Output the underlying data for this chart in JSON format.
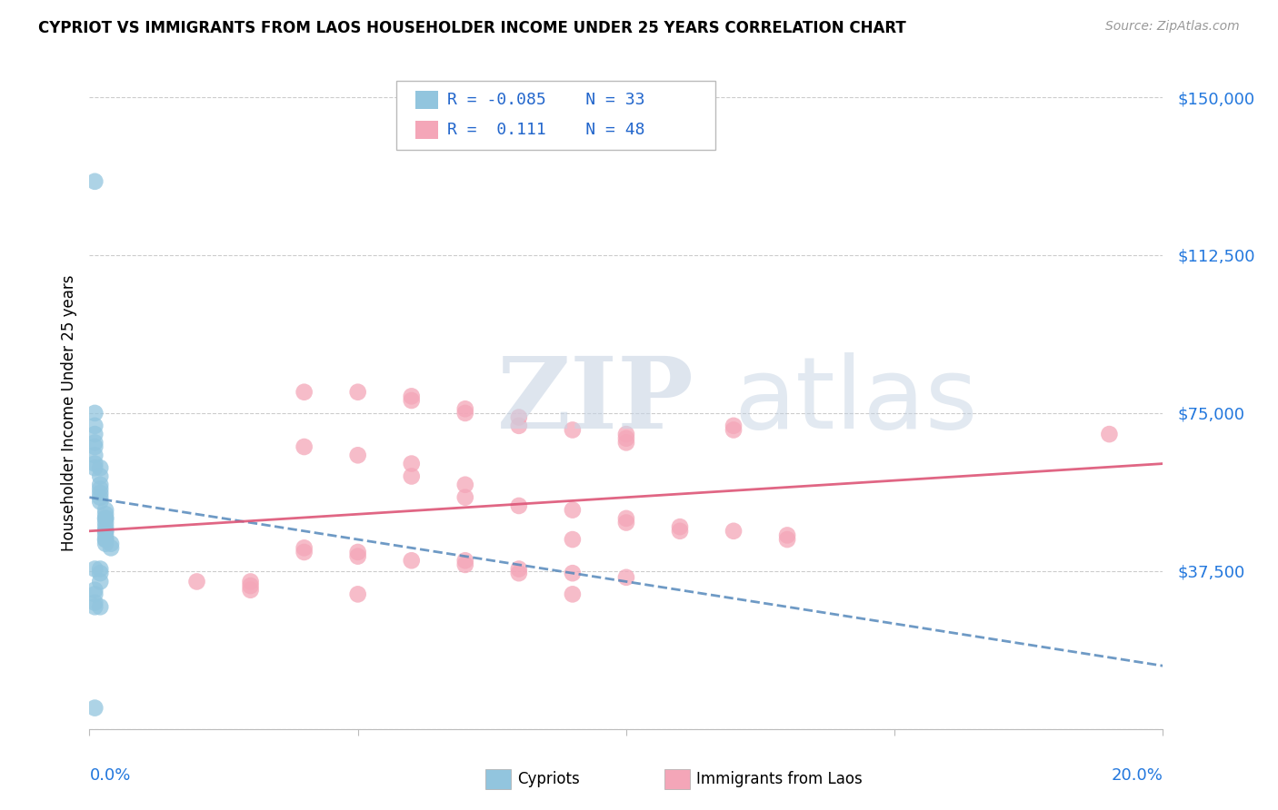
{
  "title": "CYPRIOT VS IMMIGRANTS FROM LAOS HOUSEHOLDER INCOME UNDER 25 YEARS CORRELATION CHART",
  "source": "Source: ZipAtlas.com",
  "ylabel": "Householder Income Under 25 years",
  "xmin": 0.0,
  "xmax": 0.2,
  "ymin": 0,
  "ymax": 150000,
  "yticks": [
    0,
    37500,
    75000,
    112500,
    150000
  ],
  "ytick_labels": [
    "",
    "$37,500",
    "$75,000",
    "$112,500",
    "$150,000"
  ],
  "cypriot_color": "#92c5de",
  "laos_color": "#f4a6b8",
  "cypriot_line_color": "#5588bb",
  "laos_line_color": "#dd5577",
  "cypriot_points": [
    [
      0.001,
      130000
    ],
    [
      0.001,
      75000
    ],
    [
      0.001,
      72000
    ],
    [
      0.001,
      70000
    ],
    [
      0.001,
      68000
    ],
    [
      0.001,
      67000
    ],
    [
      0.001,
      65000
    ],
    [
      0.001,
      63000
    ],
    [
      0.001,
      62000
    ],
    [
      0.002,
      62000
    ],
    [
      0.002,
      60000
    ],
    [
      0.002,
      58000
    ],
    [
      0.002,
      57000
    ],
    [
      0.002,
      56000
    ],
    [
      0.002,
      55000
    ],
    [
      0.002,
      54000
    ],
    [
      0.003,
      52000
    ],
    [
      0.003,
      51000
    ],
    [
      0.003,
      50000
    ],
    [
      0.003,
      50000
    ],
    [
      0.003,
      49000
    ],
    [
      0.003,
      48000
    ],
    [
      0.003,
      47000
    ],
    [
      0.003,
      47000
    ],
    [
      0.003,
      46000
    ],
    [
      0.003,
      45000
    ],
    [
      0.003,
      45000
    ],
    [
      0.003,
      44000
    ],
    [
      0.004,
      44000
    ],
    [
      0.004,
      43000
    ],
    [
      0.001,
      38000
    ],
    [
      0.002,
      38000
    ],
    [
      0.002,
      37000
    ],
    [
      0.002,
      35000
    ],
    [
      0.001,
      33000
    ],
    [
      0.001,
      32000
    ],
    [
      0.001,
      30000
    ],
    [
      0.001,
      29000
    ],
    [
      0.002,
      29000
    ],
    [
      0.001,
      5000
    ]
  ],
  "laos_points": [
    [
      0.04,
      80000
    ],
    [
      0.05,
      80000
    ],
    [
      0.06,
      79000
    ],
    [
      0.06,
      78000
    ],
    [
      0.07,
      76000
    ],
    [
      0.07,
      75000
    ],
    [
      0.08,
      74000
    ],
    [
      0.08,
      72000
    ],
    [
      0.09,
      71000
    ],
    [
      0.1,
      70000
    ],
    [
      0.1,
      69000
    ],
    [
      0.12,
      72000
    ],
    [
      0.12,
      71000
    ],
    [
      0.19,
      70000
    ],
    [
      0.04,
      67000
    ],
    [
      0.05,
      65000
    ],
    [
      0.06,
      63000
    ],
    [
      0.06,
      60000
    ],
    [
      0.07,
      58000
    ],
    [
      0.07,
      55000
    ],
    [
      0.08,
      53000
    ],
    [
      0.09,
      52000
    ],
    [
      0.1,
      50000
    ],
    [
      0.1,
      49000
    ],
    [
      0.11,
      48000
    ],
    [
      0.11,
      47000
    ],
    [
      0.12,
      47000
    ],
    [
      0.13,
      46000
    ],
    [
      0.13,
      45000
    ],
    [
      0.04,
      43000
    ],
    [
      0.04,
      42000
    ],
    [
      0.05,
      42000
    ],
    [
      0.05,
      41000
    ],
    [
      0.06,
      40000
    ],
    [
      0.07,
      40000
    ],
    [
      0.07,
      39000
    ],
    [
      0.08,
      38000
    ],
    [
      0.08,
      37000
    ],
    [
      0.09,
      37000
    ],
    [
      0.1,
      36000
    ],
    [
      0.02,
      35000
    ],
    [
      0.03,
      35000
    ],
    [
      0.03,
      34000
    ],
    [
      0.03,
      33000
    ],
    [
      0.05,
      32000
    ],
    [
      0.09,
      45000
    ],
    [
      0.09,
      32000
    ],
    [
      0.1,
      68000
    ]
  ],
  "cy_trend_x": [
    0.0,
    0.2
  ],
  "cy_trend_y": [
    55000,
    15000
  ],
  "la_trend_x": [
    0.0,
    0.2
  ],
  "la_trend_y": [
    47000,
    63000
  ]
}
